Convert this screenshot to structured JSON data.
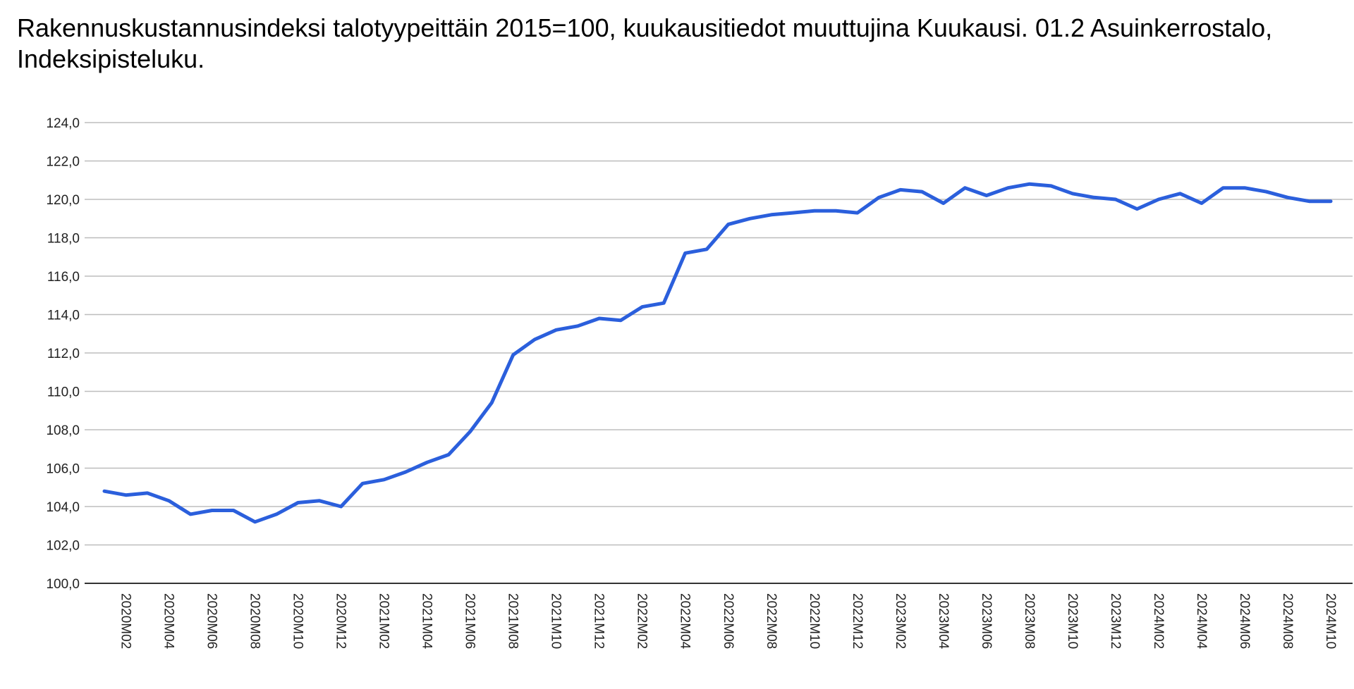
{
  "chart_data": {
    "type": "line",
    "title": "Rakennuskustannusindeksi talotyypeittäin 2015=100, kuukausitiedot muuttujina Kuukausi. 01.2 Asuinkerrostalo, Indeksipisteluku.",
    "xlabel": "",
    "ylabel": "",
    "ylim": [
      100,
      124
    ],
    "yticks": [
      "100,0",
      "102,0",
      "104,0",
      "106,0",
      "108,0",
      "110,0",
      "112,0",
      "114,0",
      "116,0",
      "118,0",
      "120,0",
      "122,0",
      "124,0"
    ],
    "grid": true,
    "legend": "none",
    "line_color": "#2b5fdc",
    "x": [
      "2020M01",
      "2020M02",
      "2020M03",
      "2020M04",
      "2020M05",
      "2020M06",
      "2020M07",
      "2020M08",
      "2020M09",
      "2020M10",
      "2020M11",
      "2020M12",
      "2021M01",
      "2021M02",
      "2021M03",
      "2021M04",
      "2021M05",
      "2021M06",
      "2021M07",
      "2021M08",
      "2021M09",
      "2021M10",
      "2021M11",
      "2021M12",
      "2022M01",
      "2022M02",
      "2022M03",
      "2022M04",
      "2022M05",
      "2022M06",
      "2022M07",
      "2022M08",
      "2022M09",
      "2022M10",
      "2022M11",
      "2022M12",
      "2023M01",
      "2023M02",
      "2023M03",
      "2023M04",
      "2023M05",
      "2023M06",
      "2023M07",
      "2023M08",
      "2023M09",
      "2023M10",
      "2023M11",
      "2023M12",
      "2024M01",
      "2024M02",
      "2024M03",
      "2024M04",
      "2024M05",
      "2024M06",
      "2024M07",
      "2024M08",
      "2024M09",
      "2024M10"
    ],
    "xtick_labels": [
      "2020M02",
      "2020M04",
      "2020M06",
      "2020M08",
      "2020M10",
      "2020M12",
      "2021M02",
      "2021M04",
      "2021M06",
      "2021M08",
      "2021M10",
      "2021M12",
      "2022M02",
      "2022M04",
      "2022M06",
      "2022M08",
      "2022M10",
      "2022M12",
      "2023M02",
      "2023M04",
      "2023M06",
      "2023M08",
      "2023M10",
      "2023M12",
      "2024M02",
      "2024M04",
      "2024M06",
      "2024M08",
      "2024M10"
    ],
    "series": [
      {
        "values": [
          104.8,
          104.6,
          104.7,
          104.3,
          103.6,
          103.8,
          103.8,
          103.2,
          103.6,
          104.2,
          104.3,
          104.0,
          105.2,
          105.4,
          105.8,
          106.3,
          106.7,
          107.9,
          109.4,
          111.9,
          112.7,
          113.2,
          113.4,
          113.8,
          113.7,
          114.4,
          114.6,
          117.2,
          117.4,
          118.7,
          119.0,
          119.2,
          119.3,
          119.4,
          119.4,
          119.3,
          120.1,
          120.5,
          120.4,
          119.8,
          120.6,
          120.2,
          120.6,
          120.8,
          120.7,
          120.3,
          120.1,
          120.0,
          119.5,
          120.0,
          120.3,
          119.8,
          120.6,
          120.6,
          120.4,
          120.1,
          119.9,
          119.9
        ]
      }
    ]
  }
}
